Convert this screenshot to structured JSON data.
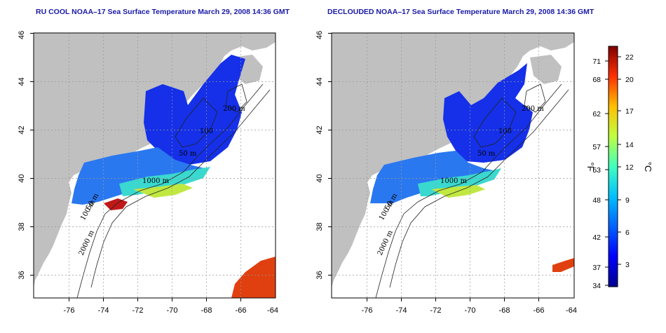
{
  "left_panel": {
    "title": "RU COOL NOAA–17 Sea Surface Temperature March 29, 2008 14:36 GMT",
    "contour_labels": [
      "200 m",
      "100",
      "50 m",
      "1000 m",
      "100 m",
      "50 m",
      "2000 m"
    ]
  },
  "right_panel": {
    "title": "DECLOUDED NOAA–17 Sea Surface Temperature March 29, 2008 14:36 GMT",
    "contour_labels": [
      "200 m",
      "100",
      "50 m",
      "1000 m",
      "100 m",
      "50 m",
      "2000 m"
    ]
  },
  "axes": {
    "longitude_ticks": [
      "-76",
      "-74",
      "-72",
      "-70",
      "-68",
      "-66",
      "-64"
    ],
    "latitude_ticks": [
      "36",
      "38",
      "40",
      "42",
      "44",
      "46"
    ]
  },
  "colorbar": {
    "fahrenheit_label": "°F",
    "celsius_label": "°C",
    "fahrenheit_ticks": [
      "71",
      "68",
      "62",
      "57",
      "53",
      "48",
      "42",
      "37",
      "34"
    ],
    "celsius_ticks": [
      "22",
      "20",
      "17",
      "14",
      "12",
      "9",
      "6",
      "3"
    ],
    "colors": [
      "#00008f",
      "#0000ff",
      "#0080ff",
      "#00ffff",
      "#80ff80",
      "#ffff00",
      "#ff8000",
      "#ff0000",
      "#800000"
    ]
  },
  "colors": {
    "land": "#c0c0c0",
    "ocean": "#ffffff",
    "grid": "#999999",
    "title": "#1a1aa6"
  }
}
